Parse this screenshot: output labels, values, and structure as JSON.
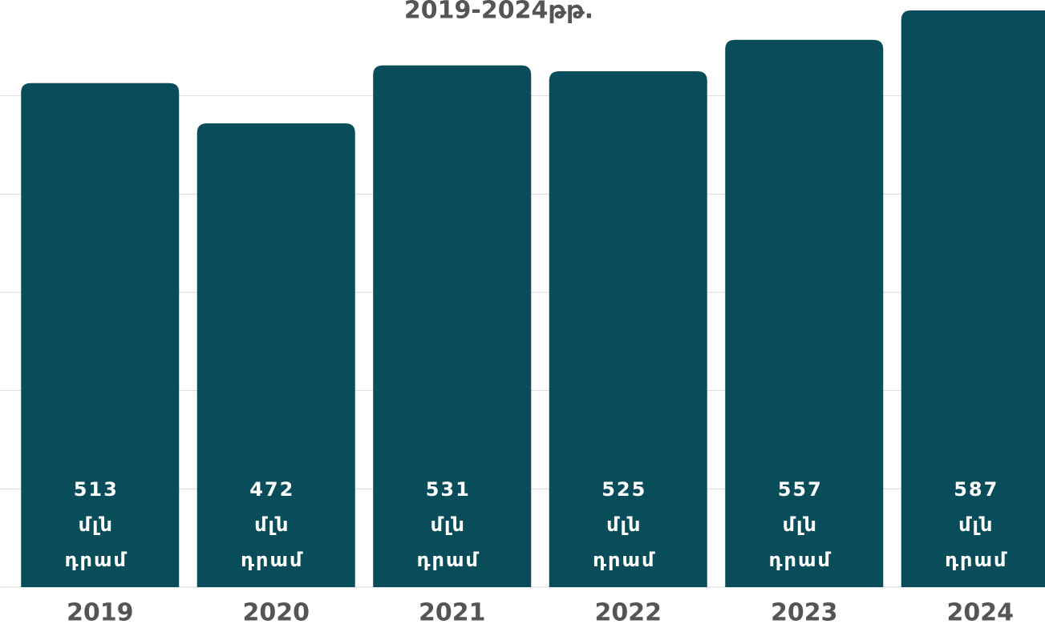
{
  "chart_data": {
    "type": "bar",
    "title": "2019-2024թթ.",
    "categories": [
      "2019",
      "2020",
      "2021",
      "2022",
      "2023",
      "2024"
    ],
    "values": [
      513,
      472,
      531,
      525,
      557,
      587
    ],
    "value_labels": [
      "513 մլն դրամ",
      "472 մլն դրամ",
      "531 մլն դրամ",
      "525 մլն դրամ",
      "557 մլն դրամ",
      "587 մլն դրամ"
    ],
    "color": "#0a4d5a",
    "ylim": [
      0,
      600
    ],
    "yticks": [
      0,
      100,
      200,
      300,
      400,
      500
    ],
    "grid": true
  }
}
